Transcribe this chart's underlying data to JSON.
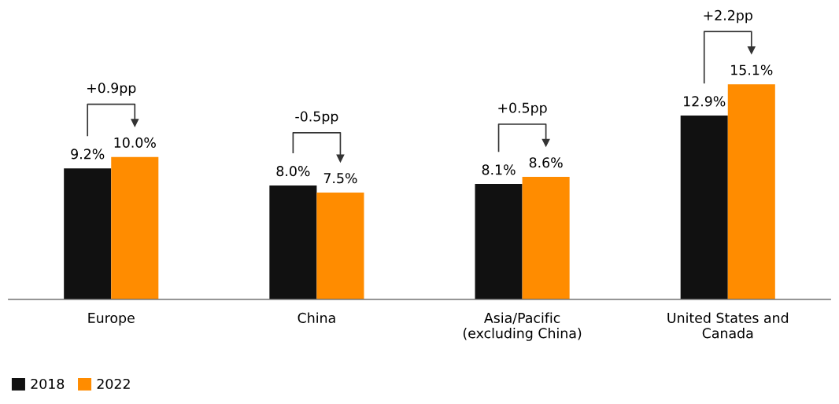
{
  "chart_data": {
    "type": "bar",
    "categories": [
      "Europe",
      "China",
      "Asia/Pacific\n(excluding China)",
      "United States and\nCanada"
    ],
    "series": [
      {
        "name": "2018",
        "color": "#111111",
        "values": [
          9.2,
          8.0,
          8.1,
          12.9
        ],
        "value_labels": [
          "9.2%",
          "8.0%",
          "8.1%",
          "12.9%"
        ]
      },
      {
        "name": "2022",
        "color": "#ff8c00",
        "values": [
          10.0,
          7.5,
          8.6,
          15.1
        ],
        "value_labels": [
          "10.0%",
          "7.5%",
          "8.6%",
          "15.1%"
        ]
      }
    ],
    "annotations": [
      "+0.9pp",
      "-0.5pp",
      "+0.5pp",
      "+2.2pp"
    ],
    "legend": "bottom left",
    "grid": false
  }
}
